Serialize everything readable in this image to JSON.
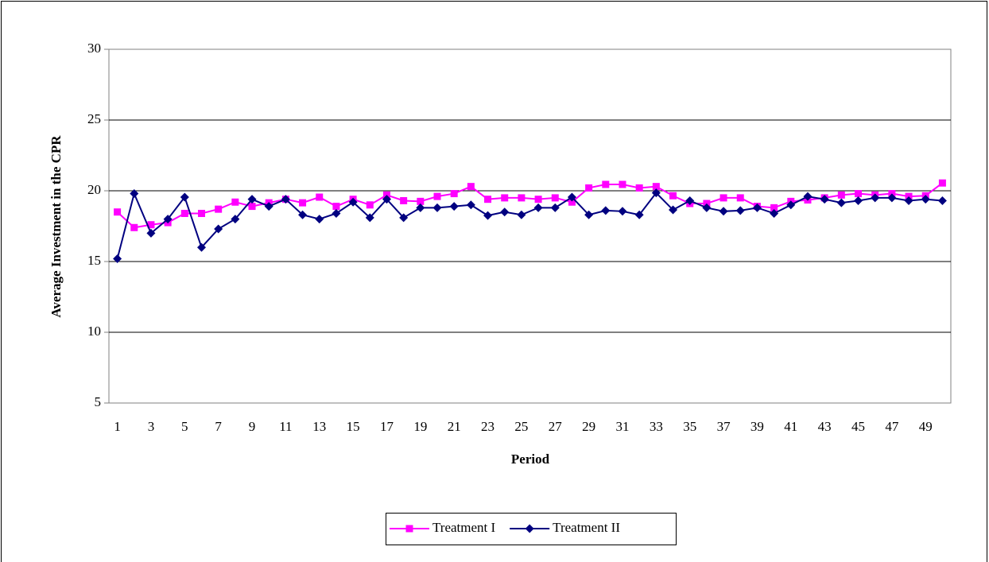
{
  "chart_data": {
    "type": "line",
    "x_label": "Period",
    "y_label": "Average Investment in the CPR",
    "categories": [
      "1",
      null,
      "3",
      null,
      "5",
      null,
      "7",
      null,
      "9",
      null,
      "11",
      null,
      "13",
      null,
      "15",
      null,
      "17",
      null,
      "19",
      null,
      "21",
      null,
      "23",
      null,
      "25",
      null,
      "27",
      null,
      "29",
      null,
      "31",
      null,
      "33",
      null,
      "35",
      null,
      "37",
      null,
      "39",
      null,
      "41",
      null,
      "43",
      null,
      "45",
      null,
      "47",
      null,
      "49",
      null
    ],
    "series": [
      {
        "name": "Treatment I",
        "color": "#ff00ff",
        "marker": "square",
        "values": [
          18.5,
          17.4,
          17.6,
          17.75,
          18.4,
          18.4,
          18.7,
          19.2,
          18.9,
          19.15,
          19.4,
          19.15,
          19.55,
          18.9,
          19.4,
          19.0,
          19.7,
          19.3,
          19.25,
          19.6,
          19.8,
          20.3,
          19.4,
          19.5,
          19.5,
          19.4,
          19.5,
          19.2,
          20.2,
          20.45,
          20.45,
          20.2,
          20.3,
          19.65,
          19.1,
          19.1,
          19.5,
          19.5,
          18.9,
          18.8,
          19.25,
          19.35,
          19.5,
          19.7,
          19.8,
          19.7,
          19.8,
          19.6,
          19.65,
          20.55
        ]
      },
      {
        "name": "Treatment II",
        "color": "#000080",
        "marker": "diamond",
        "values": [
          15.2,
          19.8,
          17.0,
          18.0,
          19.55,
          16.0,
          17.3,
          18.0,
          19.4,
          18.9,
          19.4,
          18.3,
          18.0,
          18.4,
          19.2,
          18.1,
          19.4,
          18.1,
          18.8,
          18.8,
          18.9,
          19.0,
          18.25,
          18.5,
          18.3,
          18.8,
          18.8,
          19.55,
          18.3,
          18.6,
          18.55,
          18.3,
          19.85,
          18.65,
          19.3,
          18.8,
          18.55,
          18.6,
          18.8,
          18.4,
          19.0,
          19.6,
          19.4,
          19.15,
          19.3,
          19.5,
          19.5,
          19.3,
          19.4,
          19.3
        ]
      }
    ],
    "ylim": [
      5,
      30
    ],
    "yticks": [
      5,
      10,
      15,
      20,
      25,
      30
    ],
    "grid": true,
    "legend": "bottom"
  }
}
